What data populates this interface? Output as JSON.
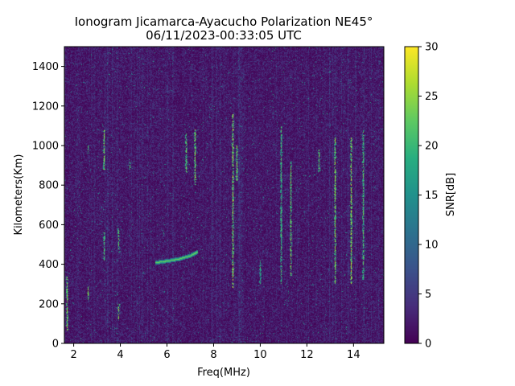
{
  "chart_data": {
    "type": "heatmap",
    "title": "Ionogram Jicamarca-Ayacucho Polarization NE45°",
    "subtitle": "06/11/2023-00:33:05 UTC",
    "xlabel": "Freq(MHz)",
    "ylabel": "Kilometers(Km)",
    "xlim": [
      1.6,
      15.3
    ],
    "ylim": [
      0,
      1500
    ],
    "x_ticks": [
      2,
      4,
      6,
      8,
      10,
      12,
      14
    ],
    "y_ticks": [
      0,
      200,
      400,
      600,
      800,
      1000,
      1200,
      1400
    ],
    "grid": false,
    "colormap": "viridis",
    "colorbar": {
      "label": "SNR[dB]",
      "range": [
        0,
        30
      ],
      "ticks": [
        0,
        5,
        10,
        15,
        20,
        25,
        30
      ]
    },
    "background_snr_db": [
      0,
      3
    ],
    "echo_trace": {
      "description_points": [
        {
          "freq_mhz": 5.5,
          "km": 410
        },
        {
          "freq_mhz": 6.0,
          "km": 418
        },
        {
          "freq_mhz": 6.5,
          "km": 428
        },
        {
          "freq_mhz": 7.0,
          "km": 445
        },
        {
          "freq_mhz": 7.3,
          "km": 465
        }
      ],
      "snr_db": 24
    },
    "vertical_interference_bands": [
      {
        "freq_mhz": 1.7,
        "km_range": [
          60,
          340
        ],
        "snr_db": 28
      },
      {
        "freq_mhz": 2.6,
        "km_range": [
          220,
          290
        ],
        "snr_db": 27
      },
      {
        "freq_mhz": 2.6,
        "km_range": [
          960,
          1000
        ],
        "snr_db": 24
      },
      {
        "freq_mhz": 3.3,
        "km_range": [
          880,
          1080
        ],
        "snr_db": 28
      },
      {
        "freq_mhz": 3.3,
        "km_range": [
          420,
          560
        ],
        "snr_db": 24
      },
      {
        "freq_mhz": 3.9,
        "km_range": [
          120,
          200
        ],
        "snr_db": 29
      },
      {
        "freq_mhz": 3.9,
        "km_range": [
          460,
          580
        ],
        "snr_db": 26
      },
      {
        "freq_mhz": 4.4,
        "km_range": [
          880,
          920
        ],
        "snr_db": 24
      },
      {
        "freq_mhz": 6.8,
        "km_range": [
          860,
          1060
        ],
        "snr_db": 26
      },
      {
        "freq_mhz": 7.2,
        "km_range": [
          800,
          1080
        ],
        "snr_db": 28
      },
      {
        "freq_mhz": 8.8,
        "km_range": [
          280,
          1160
        ],
        "snr_db": 29
      },
      {
        "freq_mhz": 9.0,
        "km_range": [
          820,
          1000
        ],
        "snr_db": 27
      },
      {
        "freq_mhz": 10.0,
        "km_range": [
          300,
          420
        ],
        "snr_db": 22
      },
      {
        "freq_mhz": 10.9,
        "km_range": [
          300,
          1100
        ],
        "snr_db": 24
      },
      {
        "freq_mhz": 11.3,
        "km_range": [
          340,
          920
        ],
        "snr_db": 27
      },
      {
        "freq_mhz": 12.5,
        "km_range": [
          860,
          980
        ],
        "snr_db": 26
      },
      {
        "freq_mhz": 13.2,
        "km_range": [
          300,
          1040
        ],
        "snr_db": 28
      },
      {
        "freq_mhz": 13.9,
        "km_range": [
          300,
          1040
        ],
        "snr_db": 29
      },
      {
        "freq_mhz": 14.4,
        "km_range": [
          320,
          1080
        ],
        "snr_db": 25
      }
    ]
  }
}
